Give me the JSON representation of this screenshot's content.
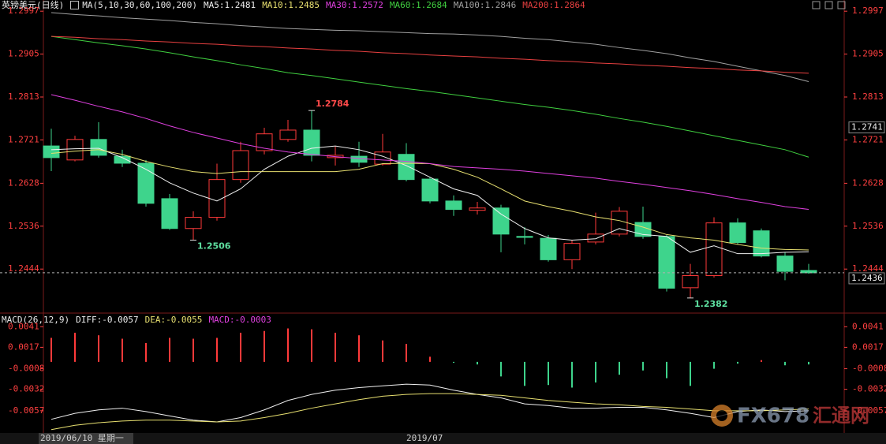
{
  "chart_data": [
    {
      "type": "candlestick",
      "title": "英镑美元(日线)",
      "subtitle": "MA(5,10,30,60,100,200)",
      "categories": [
        "2019/06/10 星期一",
        null,
        null,
        null,
        null,
        null,
        null,
        null,
        null,
        null,
        null,
        null,
        null,
        null,
        null,
        "2019/07",
        null,
        null,
        null,
        null,
        null,
        null,
        null,
        null,
        null,
        null,
        null,
        null,
        null,
        null,
        null,
        null,
        null
      ],
      "open": [
        1.2708,
        1.2678,
        1.2722,
        1.2686,
        1.2671,
        1.2595,
        1.2531,
        1.2555,
        1.2636,
        1.2698,
        1.2722,
        1.2742,
        1.2683,
        1.2686,
        1.2669,
        1.269,
        1.2637,
        1.259,
        1.257,
        1.2575,
        1.2514,
        1.251,
        1.2464,
        1.2502,
        1.2519,
        1.2544,
        1.2514,
        1.2404,
        1.243,
        1.2543,
        1.2526,
        1.2472,
        1.2441
      ],
      "high": [
        1.2745,
        1.273,
        1.2759,
        1.27,
        1.2678,
        1.2605,
        1.2568,
        1.267,
        1.2717,
        1.2747,
        1.2764,
        1.2784,
        1.2708,
        1.2717,
        1.2734,
        1.2714,
        1.2641,
        1.2602,
        1.2588,
        1.2582,
        1.2534,
        1.2517,
        1.2506,
        1.2565,
        1.2577,
        1.2578,
        1.2517,
        1.2455,
        1.2555,
        1.2553,
        1.2531,
        1.248,
        1.2455
      ],
      "low": [
        1.2654,
        1.2675,
        1.2683,
        1.2663,
        1.2578,
        1.2528,
        1.2506,
        1.2548,
        1.2629,
        1.269,
        1.2717,
        1.2675,
        1.2666,
        1.2663,
        1.2666,
        1.2632,
        1.2585,
        1.2558,
        1.2561,
        1.248,
        1.2497,
        1.246,
        1.2444,
        1.2497,
        1.2514,
        1.2509,
        1.2396,
        1.2382,
        1.2426,
        1.2497,
        1.2469,
        1.242,
        1.2434
      ],
      "close": [
        1.2683,
        1.2722,
        1.2688,
        1.2671,
        1.2585,
        1.2531,
        1.2555,
        1.2636,
        1.2698,
        1.2734,
        1.2742,
        1.2688,
        1.2688,
        1.2673,
        1.2695,
        1.2636,
        1.259,
        1.2572,
        1.2575,
        1.2519,
        1.2512,
        1.2464,
        1.2499,
        1.2519,
        1.2568,
        1.2514,
        1.2403,
        1.243,
        1.2543,
        1.2501,
        1.2472,
        1.2439,
        1.2436
      ],
      "up_color": "#ff3a3a",
      "down_color": "#3ed48c",
      "series": [
        {
          "name": "MA5:1.2481",
          "color": "#f0f0f0",
          "values": [
            1.27,
            1.2702,
            1.2703,
            1.2683,
            1.2658,
            1.2629,
            1.2607,
            1.259,
            1.2616,
            1.2658,
            1.2686,
            1.2703,
            1.2708,
            1.27,
            1.2686,
            1.2666,
            1.2641,
            1.2616,
            1.2602,
            1.2562,
            1.2531,
            1.2511,
            1.2506,
            1.2509,
            1.2531,
            1.2518,
            1.2514,
            1.248,
            1.2494,
            1.2477,
            1.2477,
            1.248,
            1.2481
          ]
        },
        {
          "name": "MA10:1.2485",
          "color": "#e8e070",
          "values": [
            1.2692,
            1.2697,
            1.27,
            1.269,
            1.2675,
            1.2663,
            1.2653,
            1.2649,
            1.2653,
            1.2653,
            1.2653,
            1.2653,
            1.2653,
            1.2658,
            1.267,
            1.2671,
            1.267,
            1.2658,
            1.2641,
            1.2616,
            1.259,
            1.2578,
            1.2568,
            1.2556,
            1.2548,
            1.2534,
            1.2518,
            1.2511,
            1.2506,
            1.2497,
            1.2489,
            1.2486,
            1.2485
          ]
        },
        {
          "name": "MA30:1.2572",
          "color": "#e040e0",
          "values": [
            1.2818,
            1.2806,
            1.2793,
            1.2781,
            1.2767,
            1.2751,
            1.2737,
            1.2725,
            1.2713,
            1.2703,
            1.2695,
            1.269,
            1.2685,
            1.2681,
            1.2678,
            1.2675,
            1.267,
            1.2664,
            1.2661,
            1.2658,
            1.2654,
            1.2649,
            1.2644,
            1.2639,
            1.2632,
            1.2626,
            1.2619,
            1.2612,
            1.2604,
            1.2595,
            1.2587,
            1.2578,
            1.2572
          ]
        },
        {
          "name": "MA60:1.2684",
          "color": "#40d040",
          "values": [
            1.2943,
            1.2936,
            1.2929,
            1.2923,
            1.2916,
            1.2908,
            1.2899,
            1.2891,
            1.2882,
            1.2874,
            1.2865,
            1.2859,
            1.2852,
            1.2845,
            1.2838,
            1.2831,
            1.2825,
            1.2818,
            1.2811,
            1.2804,
            1.2797,
            1.2791,
            1.2784,
            1.2776,
            1.2767,
            1.2759,
            1.275,
            1.274,
            1.273,
            1.272,
            1.271,
            1.27,
            1.2684
          ]
        },
        {
          "name": "MA100:1.2846",
          "color": "#a0a0a0",
          "values": [
            1.2994,
            1.299,
            1.2987,
            1.2983,
            1.298,
            1.2977,
            1.2973,
            1.297,
            1.2966,
            1.2963,
            1.296,
            1.2958,
            1.2956,
            1.2955,
            1.2953,
            1.2951,
            1.2949,
            1.2948,
            1.2946,
            1.2943,
            1.2939,
            1.2936,
            1.2931,
            1.2926,
            1.2919,
            1.2913,
            1.2906,
            1.2897,
            1.2889,
            1.2879,
            1.2869,
            1.2859,
            1.2846
          ]
        },
        {
          "name": "MA200:1.2864",
          "color": "#e84040",
          "values": [
            1.2943,
            1.2941,
            1.2938,
            1.2936,
            1.2933,
            1.2931,
            1.2928,
            1.2926,
            1.2923,
            1.2921,
            1.2918,
            1.2916,
            1.2913,
            1.2911,
            1.2908,
            1.2906,
            1.2903,
            1.2901,
            1.2899,
            1.2896,
            1.2894,
            1.2891,
            1.2889,
            1.2886,
            1.2884,
            1.2881,
            1.2879,
            1.2876,
            1.2874,
            1.2871,
            1.2869,
            1.2866,
            1.2864
          ]
        }
      ],
      "annotations": [
        {
          "index": 11,
          "value": 1.2784,
          "color": "#ff4a4a"
        },
        {
          "index": 6,
          "value": 1.2506,
          "color": "#5ee0a0"
        },
        {
          "index": 27,
          "value": 1.2382,
          "color": "#5ee0a0"
        }
      ],
      "price_markers": [
        {
          "value": 1.2741
        },
        {
          "value": 1.2436,
          "line": true
        }
      ],
      "tick_color": "#ff4040",
      "ylim": [
        1.2353,
        1.3021
      ],
      "yticks": [
        1.2997,
        1.2905,
        1.2813,
        1.2721,
        1.2628,
        1.2536,
        1.2444
      ]
    },
    {
      "type": "macd",
      "title": "MACD(26,12,9)",
      "series": [
        {
          "name": "DIFF:-0.0057",
          "color": "#f0f0f0",
          "style": "line",
          "values": [
            -0.0067,
            -0.006,
            -0.0056,
            -0.0054,
            -0.0058,
            -0.0063,
            -0.0068,
            -0.007,
            -0.0065,
            -0.0056,
            -0.0045,
            -0.0038,
            -0.0033,
            -0.003,
            -0.0028,
            -0.0026,
            -0.0027,
            -0.0033,
            -0.0038,
            -0.0042,
            -0.0049,
            -0.0051,
            -0.0054,
            -0.0054,
            -0.0053,
            -0.0053,
            -0.0056,
            -0.006,
            -0.0065,
            -0.0058,
            -0.0056,
            -0.0058,
            -0.0057
          ]
        },
        {
          "name": "DEA:-0.0055",
          "color": "#e8e070",
          "style": "line",
          "values": [
            -0.0079,
            -0.0074,
            -0.0071,
            -0.0069,
            -0.0068,
            -0.0068,
            -0.0069,
            -0.007,
            -0.0069,
            -0.0065,
            -0.006,
            -0.0054,
            -0.0049,
            -0.0044,
            -0.004,
            -0.0038,
            -0.0037,
            -0.0037,
            -0.0038,
            -0.0039,
            -0.0042,
            -0.0045,
            -0.0047,
            -0.0049,
            -0.005,
            -0.0052,
            -0.0053,
            -0.0055,
            -0.0057,
            -0.0057,
            -0.0057,
            -0.0056,
            -0.0055
          ]
        },
        {
          "name": "MACD:-0.0003",
          "color": "#e040e0",
          "style": "histogram",
          "up_color": "#ff3a3a",
          "down_color": "#3ed48c",
          "values": [
            0.0028,
            0.0034,
            0.0031,
            0.0027,
            0.0022,
            0.0028,
            0.0027,
            0.0028,
            0.0034,
            0.0036,
            0.0039,
            0.0038,
            0.0034,
            0.0031,
            0.0025,
            0.0021,
            0.0006,
            -0.0001,
            -0.0003,
            -0.0017,
            -0.0028,
            -0.0027,
            -0.003,
            -0.0024,
            -0.0015,
            -0.001,
            -0.0019,
            -0.0028,
            -0.0008,
            -0.0002,
            0.0002,
            -0.0004,
            -0.0003
          ]
        }
      ],
      "tick_color": "#ff4040",
      "ylim": [
        -0.0082,
        0.0056
      ],
      "yticks": [
        0.0041,
        0.0017,
        -0.0008,
        -0.0032,
        -0.0057
      ]
    }
  ],
  "watermark": [
    "FX678",
    "汇通网"
  ]
}
